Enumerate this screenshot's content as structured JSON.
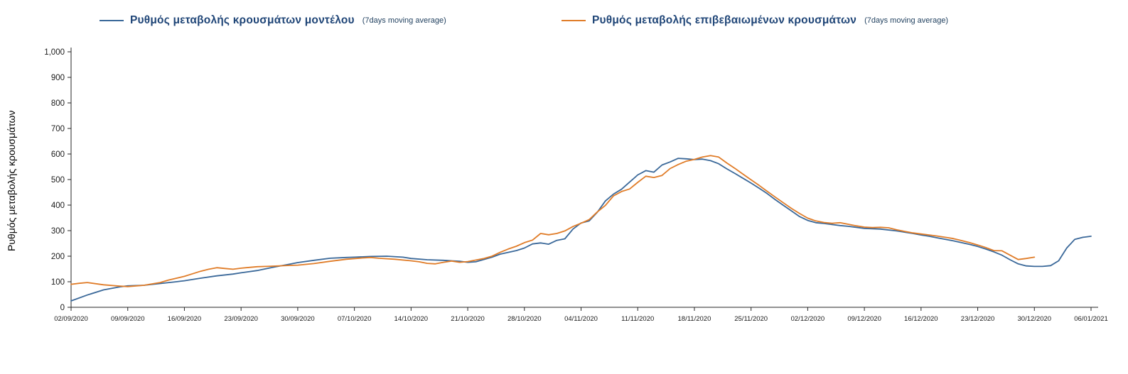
{
  "page": {
    "background": "#FFFFFF"
  },
  "legend": {
    "items": [
      {
        "label": "Ρυθμός μεταβολής κρουσμάτων μοντέλου",
        "sub": "(7days moving average)"
      },
      {
        "label": "Ρυθμός μεταβολής επιβεβαιωμένων κρουσμάτων",
        "sub": "(7days moving average)"
      }
    ]
  },
  "chart_data": {
    "type": "line",
    "title": "",
    "xlabel": "",
    "ylabel": "Ρυθμός μεταβολής κρουσμάτων",
    "ylim": [
      0,
      1000
    ],
    "grid": false,
    "legend_position": "top",
    "y_tick_labels": [
      "0",
      "100",
      "200",
      "300",
      "400",
      "500",
      "600",
      "700",
      "800",
      "900",
      "1,000"
    ],
    "x_tick_labels": [
      "02/09/2020",
      "09/09/2020",
      "16/09/2020",
      "23/09/2020",
      "30/09/2020",
      "07/10/2020",
      "14/10/2020",
      "21/10/2020",
      "28/10/2020",
      "04/11/2020",
      "11/11/2020",
      "18/11/2020",
      "25/11/2020",
      "02/12/2020",
      "09/12/2020",
      "16/12/2020",
      "23/12/2020",
      "30/12/2020",
      "06/01/2021"
    ],
    "x_tick_day_index": [
      0,
      7,
      14,
      21,
      28,
      35,
      42,
      49,
      56,
      63,
      70,
      77,
      84,
      91,
      98,
      105,
      112,
      119,
      126
    ],
    "x_day_max": 126,
    "series": [
      {
        "name": "Ρυθμός μεταβολής κρουσμάτων μοντέλου (7days moving average)",
        "color": "#3A6899",
        "points": [
          [
            0,
            25
          ],
          [
            2,
            48
          ],
          [
            4,
            68
          ],
          [
            6,
            80
          ],
          [
            7,
            84
          ],
          [
            9,
            86
          ],
          [
            11,
            93
          ],
          [
            13,
            100
          ],
          [
            14,
            104
          ],
          [
            16,
            114
          ],
          [
            18,
            123
          ],
          [
            20,
            130
          ],
          [
            21,
            135
          ],
          [
            23,
            144
          ],
          [
            25,
            157
          ],
          [
            27,
            169
          ],
          [
            28,
            175
          ],
          [
            30,
            184
          ],
          [
            32,
            192
          ],
          [
            34,
            195
          ],
          [
            35,
            196
          ],
          [
            37,
            199
          ],
          [
            39,
            200
          ],
          [
            41,
            196
          ],
          [
            42,
            191
          ],
          [
            44,
            186
          ],
          [
            46,
            184
          ],
          [
            48,
            180
          ],
          [
            49,
            176
          ],
          [
            50,
            178
          ],
          [
            52,
            196
          ],
          [
            53,
            208
          ],
          [
            55,
            222
          ],
          [
            56,
            232
          ],
          [
            57,
            248
          ],
          [
            58,
            252
          ],
          [
            59,
            247
          ],
          [
            60,
            262
          ],
          [
            61,
            268
          ],
          [
            62,
            306
          ],
          [
            63,
            330
          ],
          [
            64,
            338
          ],
          [
            65,
            372
          ],
          [
            66,
            416
          ],
          [
            67,
            443
          ],
          [
            68,
            462
          ],
          [
            69,
            490
          ],
          [
            70,
            518
          ],
          [
            71,
            535
          ],
          [
            72,
            529
          ],
          [
            73,
            557
          ],
          [
            74,
            569
          ],
          [
            75,
            583
          ],
          [
            76,
            581
          ],
          [
            77,
            578
          ],
          [
            78,
            580
          ],
          [
            79,
            574
          ],
          [
            80,
            562
          ],
          [
            81,
            542
          ],
          [
            82,
            524
          ],
          [
            83,
            505
          ],
          [
            84,
            486
          ],
          [
            85,
            466
          ],
          [
            86,
            445
          ],
          [
            87,
            421
          ],
          [
            88,
            399
          ],
          [
            89,
            377
          ],
          [
            90,
            355
          ],
          [
            91,
            340
          ],
          [
            92,
            331
          ],
          [
            93,
            328
          ],
          [
            94,
            324
          ],
          [
            95,
            320
          ],
          [
            96,
            317
          ],
          [
            97,
            313
          ],
          [
            98,
            309
          ],
          [
            100,
            306
          ],
          [
            102,
            299
          ],
          [
            104,
            289
          ],
          [
            105,
            283
          ],
          [
            106,
            278
          ],
          [
            107,
            272
          ],
          [
            108,
            266
          ],
          [
            109,
            260
          ],
          [
            110,
            253
          ],
          [
            111,
            246
          ],
          [
            112,
            238
          ],
          [
            113,
            228
          ],
          [
            114,
            217
          ],
          [
            115,
            204
          ],
          [
            116,
            186
          ],
          [
            117,
            170
          ],
          [
            118,
            162
          ],
          [
            119,
            160
          ],
          [
            120,
            160
          ],
          [
            121,
            163
          ],
          [
            122,
            182
          ],
          [
            123,
            232
          ],
          [
            124,
            266
          ],
          [
            125,
            274
          ],
          [
            126,
            278
          ]
        ]
      },
      {
        "name": "Ρυθμός μεταβολής επιβεβαιωμένων κρουσμάτων (7days moving average)",
        "color": "#E07C28",
        "points": [
          [
            0,
            90
          ],
          [
            1,
            94
          ],
          [
            2,
            97
          ],
          [
            4,
            88
          ],
          [
            6,
            83
          ],
          [
            7,
            81
          ],
          [
            9,
            86
          ],
          [
            11,
            97
          ],
          [
            12,
            106
          ],
          [
            14,
            121
          ],
          [
            15,
            131
          ],
          [
            16,
            141
          ],
          [
            17,
            149
          ],
          [
            18,
            155
          ],
          [
            19,
            152
          ],
          [
            20,
            149
          ],
          [
            21,
            153
          ],
          [
            22,
            156
          ],
          [
            23,
            159
          ],
          [
            25,
            161
          ],
          [
            27,
            164
          ],
          [
            28,
            165
          ],
          [
            30,
            171
          ],
          [
            32,
            180
          ],
          [
            34,
            188
          ],
          [
            36,
            193
          ],
          [
            37,
            195
          ],
          [
            38,
            192
          ],
          [
            40,
            188
          ],
          [
            42,
            182
          ],
          [
            43,
            178
          ],
          [
            44,
            172
          ],
          [
            45,
            170
          ],
          [
            46,
            176
          ],
          [
            47,
            181
          ],
          [
            48,
            176
          ],
          [
            49,
            179
          ],
          [
            51,
            191
          ],
          [
            52,
            200
          ],
          [
            53,
            215
          ],
          [
            54,
            228
          ],
          [
            55,
            239
          ],
          [
            56,
            253
          ],
          [
            57,
            263
          ],
          [
            58,
            289
          ],
          [
            59,
            284
          ],
          [
            60,
            289
          ],
          [
            61,
            299
          ],
          [
            62,
            316
          ],
          [
            63,
            329
          ],
          [
            64,
            343
          ],
          [
            65,
            373
          ],
          [
            66,
            399
          ],
          [
            67,
            436
          ],
          [
            68,
            453
          ],
          [
            69,
            463
          ],
          [
            70,
            489
          ],
          [
            71,
            513
          ],
          [
            72,
            508
          ],
          [
            73,
            516
          ],
          [
            74,
            543
          ],
          [
            75,
            559
          ],
          [
            76,
            572
          ],
          [
            77,
            579
          ],
          [
            78,
            588
          ],
          [
            79,
            594
          ],
          [
            80,
            588
          ],
          [
            81,
            565
          ],
          [
            82,
            544
          ],
          [
            83,
            521
          ],
          [
            84,
            499
          ],
          [
            85,
            477
          ],
          [
            86,
            454
          ],
          [
            87,
            431
          ],
          [
            88,
            409
          ],
          [
            89,
            387
          ],
          [
            90,
            367
          ],
          [
            91,
            349
          ],
          [
            92,
            338
          ],
          [
            93,
            332
          ],
          [
            94,
            329
          ],
          [
            95,
            331
          ],
          [
            96,
            325
          ],
          [
            97,
            319
          ],
          [
            98,
            314
          ],
          [
            99,
            312
          ],
          [
            100,
            313
          ],
          [
            101,
            311
          ],
          [
            102,
            303
          ],
          [
            103,
            297
          ],
          [
            104,
            291
          ],
          [
            105,
            287
          ],
          [
            106,
            283
          ],
          [
            107,
            279
          ],
          [
            108,
            274
          ],
          [
            109,
            269
          ],
          [
            110,
            261
          ],
          [
            111,
            253
          ],
          [
            112,
            244
          ],
          [
            113,
            234
          ],
          [
            114,
            222
          ],
          [
            115,
            221
          ],
          [
            116,
            204
          ],
          [
            117,
            187
          ],
          [
            118,
            191
          ],
          [
            119,
            196
          ]
        ]
      }
    ]
  }
}
